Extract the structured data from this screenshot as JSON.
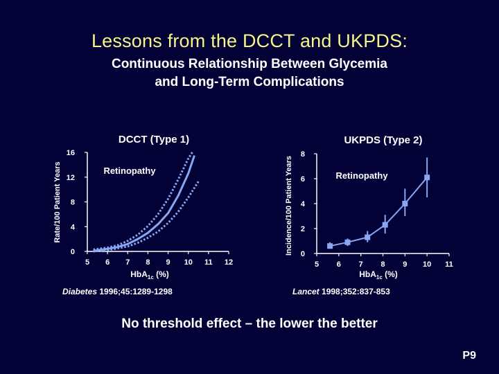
{
  "slide": {
    "title": "Lessons from the DCCT and UKPDS:",
    "subtitle_line1": "Continuous Relationship Between Glycemia",
    "subtitle_line2": "and Long-Term Complications",
    "footer": "No threshold effect – the lower the better",
    "page_number": "P9"
  },
  "colors": {
    "background": "#020236",
    "title": "#f6f58a",
    "curve": "#89a6f2",
    "text": "#ffffff"
  },
  "chart_data": [
    {
      "type": "line",
      "title": "DCCT (Type 1)",
      "annotation": "Retinopathy",
      "ylabel": "Rate/100 Patient Years",
      "xlabel": "HbA",
      "xlabel_sub": "1c",
      "xlabel_suffix": " (%)",
      "citation_journal": "Diabetes",
      "citation_ref": " 1996;45:1289-1298",
      "xlim": [
        5,
        12
      ],
      "ylim": [
        0,
        16
      ],
      "x_ticks": [
        "5",
        "6",
        "7",
        "8",
        "9",
        "10",
        "11",
        "12"
      ],
      "y_ticks": [
        "0",
        "4",
        "8",
        "12",
        "16"
      ],
      "series": [
        {
          "style": "solid",
          "x": [
            5.3,
            6,
            6.5,
            7,
            7.5,
            8,
            8.5,
            9,
            9.5,
            10,
            10.3
          ],
          "y": [
            0.1,
            0.4,
            0.7,
            1.2,
            2.0,
            3.0,
            4.4,
            6.2,
            9.0,
            12.6,
            15.5
          ]
        },
        {
          "style": "dotted",
          "x": [
            5.3,
            6,
            6.5,
            7,
            7.5,
            8,
            8.5,
            9,
            9.5,
            10,
            10.2
          ],
          "y": [
            0.3,
            0.6,
            1.0,
            1.7,
            2.7,
            4.1,
            6.0,
            8.5,
            11.6,
            15.0,
            16.0
          ]
        },
        {
          "style": "dotted",
          "x": [
            5.3,
            6,
            6.5,
            7,
            7.5,
            8,
            8.5,
            9,
            9.5,
            10,
            10.5
          ],
          "y": [
            0.0,
            0.2,
            0.5,
            0.8,
            1.4,
            2.2,
            3.2,
            4.6,
            6.4,
            8.7,
            11.3
          ]
        }
      ]
    },
    {
      "type": "line",
      "title": "UKPDS (Type 2)",
      "annotation": "Retinopathy",
      "ylabel": "Incidence/100 Patient Years",
      "xlabel": "HbA",
      "xlabel_sub": "1c",
      "xlabel_suffix": " (%)",
      "citation_journal": "Lancet",
      "citation_ref": " 1998;352:837-853",
      "xlim": [
        5,
        11
      ],
      "ylim": [
        0,
        8
      ],
      "x_ticks": [
        "5",
        "6",
        "7",
        "8",
        "9",
        "10",
        "11"
      ],
      "y_ticks": [
        "0",
        "2",
        "4",
        "6",
        "8"
      ],
      "series": [
        {
          "style": "markers-errorbars",
          "x": [
            5.6,
            6.4,
            7.3,
            8.1,
            9.0,
            10.0
          ],
          "y": [
            0.6,
            0.9,
            1.3,
            2.3,
            4.0,
            6.1
          ],
          "y_low": [
            0.4,
            0.6,
            0.9,
            1.6,
            3.0,
            4.5
          ],
          "y_high": [
            0.9,
            1.2,
            1.8,
            3.1,
            5.2,
            7.7
          ]
        }
      ]
    }
  ]
}
